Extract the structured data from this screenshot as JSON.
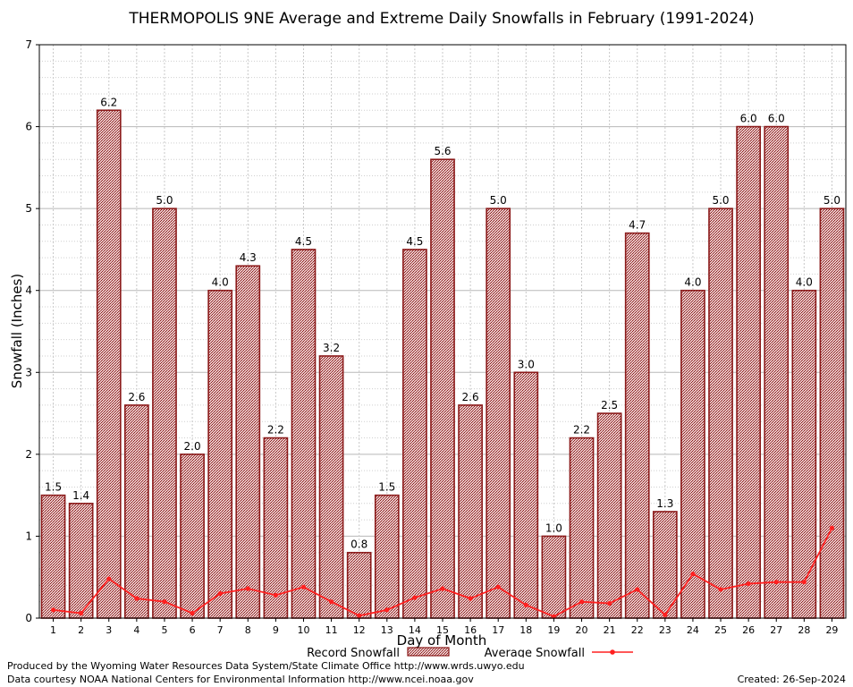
{
  "chart_data": {
    "type": "bar",
    "title": "THERMOPOLIS 9NE Average and Extreme Daily Snowfalls in February (1991-2024)",
    "xlabel": "Day of Month",
    "ylabel": "Snowfall (Inches)",
    "ylim": [
      0,
      7
    ],
    "yticks": [
      "0",
      "1",
      "2",
      "3",
      "4",
      "5",
      "6",
      "7"
    ],
    "grid": true,
    "categories": [
      "1",
      "2",
      "3",
      "4",
      "5",
      "6",
      "7",
      "8",
      "9",
      "10",
      "11",
      "12",
      "13",
      "14",
      "15",
      "16",
      "17",
      "18",
      "19",
      "20",
      "21",
      "22",
      "23",
      "24",
      "25",
      "26",
      "27",
      "28",
      "29"
    ],
    "series": [
      {
        "name": "Record Snowfall",
        "type": "bar",
        "color": "#8b1a1a",
        "values": [
          1.5,
          1.4,
          6.2,
          2.6,
          5.0,
          2.0,
          4.0,
          4.3,
          2.2,
          4.5,
          3.2,
          0.8,
          1.5,
          4.5,
          5.6,
          2.6,
          5.0,
          3.0,
          1.0,
          2.2,
          2.5,
          4.7,
          1.3,
          4.0,
          5.0,
          6.0,
          6.0,
          4.0,
          5.0
        ],
        "labels": [
          "1.5",
          "1.4",
          "6.2",
          "2.6",
          "5.0",
          "2.0",
          "4.0",
          "4.3",
          "2.2",
          "4.5",
          "3.2",
          "0.8",
          "1.5",
          "4.5",
          "5.6",
          "2.6",
          "5.0",
          "3.0",
          "1.0",
          "2.2",
          "2.5",
          "4.7",
          "1.3",
          "4.0",
          "5.0",
          "6.0",
          "6.0",
          "4.0",
          "5.0"
        ]
      },
      {
        "name": "Average Snowfall",
        "type": "line",
        "color": "#ff2020",
        "values": [
          0.1,
          0.06,
          0.48,
          0.24,
          0.2,
          0.06,
          0.3,
          0.36,
          0.28,
          0.38,
          0.2,
          0.03,
          0.1,
          0.25,
          0.36,
          0.24,
          0.38,
          0.16,
          0.02,
          0.2,
          0.18,
          0.35,
          0.04,
          0.54,
          0.35,
          0.42,
          0.44,
          0.44,
          1.1
        ]
      }
    ],
    "legend": {
      "placement": "bottom"
    }
  },
  "footer": {
    "line1": "Produced by the Wyoming Water Resources Data System/State Climate Office http://www.wrds.uwyo.edu",
    "line2": "Data courtesy NOAA National Centers for Environmental Information http://www.ncei.noaa.gov",
    "created": "Created:  26-Sep-2024"
  }
}
